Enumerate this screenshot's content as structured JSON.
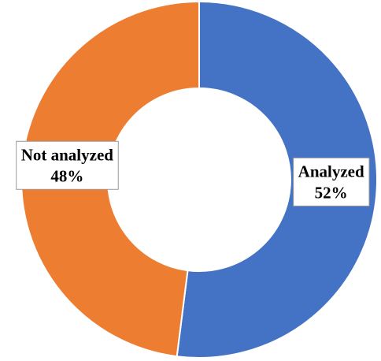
{
  "chart_data": {
    "type": "donut",
    "categories": [
      "Analyzed",
      "Not analyzed"
    ],
    "values": [
      52,
      48
    ],
    "value_labels": [
      "52%",
      "48%"
    ],
    "colors": [
      "#4472c4",
      "#ed7d31"
    ]
  }
}
